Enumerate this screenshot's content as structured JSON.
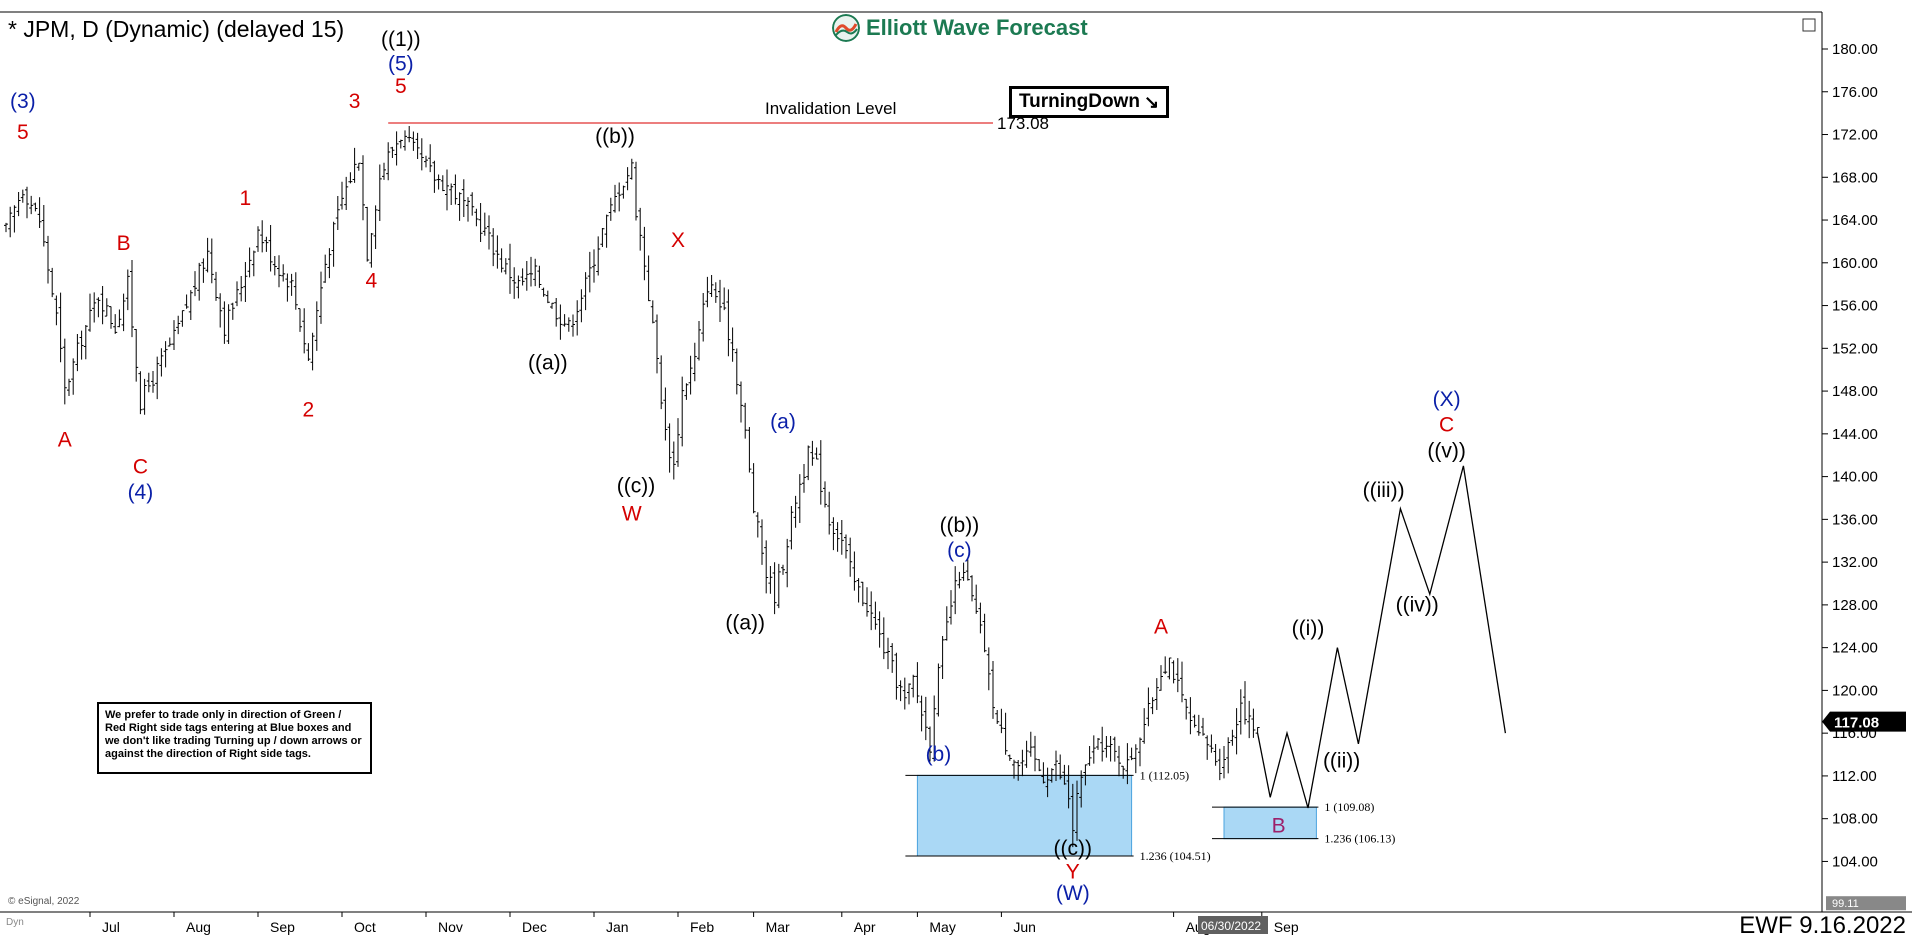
{
  "header": {
    "title": "* JPM, D (Dynamic) (delayed 15)",
    "brand": "Elliott Wave Forecast",
    "tag": "TurningDown"
  },
  "note": "We prefer to trade only in direction of Green / Red Right side tags entering at Blue boxes and we don't like trading Turning up / down arrows or against the direction of Right side tags.",
  "footer": {
    "copyright": "© eSignal, 2022",
    "ewf_date": "EWF 9.16.2022",
    "dyn": "Dyn",
    "date_highlight": "06/30/2022"
  },
  "colors": {
    "red": "#d40000",
    "blue": "#0a1fa8",
    "black": "#000000",
    "box": "#aad8f5",
    "box_border": "#4aa3df",
    "purple": "#9c1f6a",
    "brand": "#1c7a52"
  },
  "chart_data": {
    "type": "ohlc",
    "ylim": [
      100,
      182
    ],
    "y_ticks": [
      "180.00",
      "176.00",
      "172.00",
      "168.00",
      "164.00",
      "160.00",
      "156.00",
      "152.00",
      "148.00",
      "144.00",
      "140.00",
      "136.00",
      "132.00",
      "128.00",
      "124.00",
      "120.00",
      "116.00",
      "112.00",
      "108.00",
      "104.00"
    ],
    "x_months": [
      {
        "label": "Jul",
        "bar": 20
      },
      {
        "label": "Aug",
        "bar": 40
      },
      {
        "label": "Sep",
        "bar": 60
      },
      {
        "label": "Oct",
        "bar": 80
      },
      {
        "label": "Nov",
        "bar": 100
      },
      {
        "label": "Dec",
        "bar": 120
      },
      {
        "label": "Jan",
        "bar": 140
      },
      {
        "label": "Feb",
        "bar": 160
      },
      {
        "label": "Mar",
        "bar": 178
      },
      {
        "label": "Apr",
        "bar": 199
      },
      {
        "label": "May",
        "bar": 217
      },
      {
        "label": "Jun",
        "bar": 237
      },
      {
        "label": "Aug",
        "bar": 278
      },
      {
        "label": "Sep",
        "bar": 299
      }
    ],
    "price_anchors": [
      [
        0,
        163
      ],
      [
        4,
        167
      ],
      [
        8,
        164
      ],
      [
        12,
        155
      ],
      [
        14,
        148
      ],
      [
        18,
        153
      ],
      [
        22,
        157
      ],
      [
        26,
        154
      ],
      [
        29,
        158
      ],
      [
        32,
        147
      ],
      [
        36,
        150
      ],
      [
        40,
        153
      ],
      [
        44,
        157
      ],
      [
        48,
        161
      ],
      [
        52,
        154
      ],
      [
        56,
        158
      ],
      [
        60,
        163
      ],
      [
        64,
        160
      ],
      [
        68,
        158
      ],
      [
        72,
        151
      ],
      [
        76,
        160
      ],
      [
        80,
        166
      ],
      [
        84,
        170
      ],
      [
        86,
        161
      ],
      [
        89,
        168
      ],
      [
        91,
        170
      ],
      [
        94,
        172
      ],
      [
        98,
        170
      ],
      [
        102,
        168
      ],
      [
        106,
        167
      ],
      [
        110,
        165
      ],
      [
        114,
        163
      ],
      [
        118,
        160
      ],
      [
        122,
        158
      ],
      [
        126,
        159
      ],
      [
        130,
        156
      ],
      [
        134,
        154
      ],
      [
        138,
        158
      ],
      [
        142,
        163
      ],
      [
        146,
        167
      ],
      [
        149,
        169
      ],
      [
        150,
        165
      ],
      [
        152,
        160
      ],
      [
        155,
        151
      ],
      [
        157,
        144
      ],
      [
        159,
        141
      ],
      [
        161,
        148
      ],
      [
        164,
        151
      ],
      [
        167,
        158
      ],
      [
        169,
        157
      ],
      [
        171,
        155
      ],
      [
        173,
        152
      ],
      [
        176,
        144
      ],
      [
        178,
        137
      ],
      [
        181,
        131
      ],
      [
        183,
        129
      ],
      [
        185,
        132
      ],
      [
        188,
        138
      ],
      [
        191,
        142
      ],
      [
        193,
        141
      ],
      [
        196,
        136
      ],
      [
        199,
        134
      ],
      [
        202,
        130
      ],
      [
        205,
        128
      ],
      [
        208,
        125
      ],
      [
        211,
        122
      ],
      [
        214,
        119
      ],
      [
        216,
        121
      ],
      [
        218,
        118
      ],
      [
        220,
        115
      ],
      [
        221,
        119
      ],
      [
        223,
        124
      ],
      [
        225,
        128
      ],
      [
        227,
        131
      ],
      [
        229,
        130
      ],
      [
        231,
        127
      ],
      [
        233,
        124
      ],
      [
        234,
        121
      ],
      [
        236,
        117
      ],
      [
        238,
        115
      ],
      [
        241,
        113
      ],
      [
        244,
        114
      ],
      [
        247,
        112
      ],
      [
        250,
        113
      ],
      [
        253,
        110
      ],
      [
        254,
        107
      ],
      [
        255,
        110
      ],
      [
        258,
        114
      ],
      [
        261,
        115
      ],
      [
        264,
        114
      ],
      [
        267,
        113
      ],
      [
        269,
        115
      ],
      [
        272,
        118
      ],
      [
        275,
        122
      ],
      [
        277,
        123
      ],
      [
        280,
        119
      ],
      [
        283,
        116
      ],
      [
        286,
        115
      ],
      [
        289,
        113
      ],
      [
        292,
        116
      ],
      [
        294,
        119
      ],
      [
        296,
        117
      ],
      [
        298,
        116
      ]
    ],
    "projection": [
      [
        298,
        116
      ],
      [
        301,
        110
      ],
      [
        305,
        116
      ],
      [
        310,
        109
      ],
      [
        317,
        124
      ],
      [
        322,
        115
      ],
      [
        332,
        137
      ],
      [
        339,
        129
      ],
      [
        347,
        141
      ],
      [
        357,
        116
      ]
    ],
    "invalidation": {
      "label": "Invalidation Level",
      "value": 173.08,
      "value_label": "173.08",
      "from_bar": 91,
      "to_bar": 235
    },
    "last_price": {
      "value": 117.08,
      "label": "117.08"
    },
    "bottom_price": {
      "value": 100.0,
      "label": "99.11"
    },
    "boxes": [
      {
        "from_bar": 217,
        "to_bar": 268,
        "top": 112.05,
        "bottom": 104.51,
        "top_label": "1 (112.05)",
        "bottom_label": "1.236 (104.51)"
      },
      {
        "from_bar": 290,
        "to_bar": 312,
        "top": 109.08,
        "bottom": 106.13,
        "top_label": "1 (109.08)",
        "bottom_label": "1.236 (106.13)"
      }
    ],
    "wave_labels": [
      {
        "text": "(3)",
        "bar": 4,
        "price": 174.5,
        "color": "blue"
      },
      {
        "text": "5",
        "bar": 4,
        "price": 171.6,
        "color": "red"
      },
      {
        "text": "A",
        "bar": 14,
        "price": 142.8,
        "color": "red"
      },
      {
        "text": "B",
        "bar": 28,
        "price": 161.2,
        "color": "red"
      },
      {
        "text": "C",
        "bar": 32,
        "price": 140.3,
        "color": "red"
      },
      {
        "text": "(4)",
        "bar": 32,
        "price": 137.9,
        "color": "blue"
      },
      {
        "text": "1",
        "bar": 57,
        "price": 165.4,
        "color": "red"
      },
      {
        "text": "2",
        "bar": 72,
        "price": 145.6,
        "color": "red"
      },
      {
        "text": "3",
        "bar": 83,
        "price": 174.5,
        "color": "red"
      },
      {
        "text": "4",
        "bar": 87,
        "price": 157.7,
        "color": "red"
      },
      {
        "text": "((1))",
        "bar": 94,
        "price": 180.3,
        "color": "black"
      },
      {
        "text": "(5)",
        "bar": 94,
        "price": 178.0,
        "color": "blue"
      },
      {
        "text": "5",
        "bar": 94,
        "price": 175.9,
        "color": "red"
      },
      {
        "text": "((a))",
        "bar": 129,
        "price": 150.0,
        "color": "black"
      },
      {
        "text": "((b))",
        "bar": 145,
        "price": 171.2,
        "color": "black"
      },
      {
        "text": "((c))",
        "bar": 150,
        "price": 138.5,
        "color": "black"
      },
      {
        "text": "W",
        "bar": 149,
        "price": 135.9,
        "color": "red"
      },
      {
        "text": "X",
        "bar": 160,
        "price": 161.5,
        "color": "red"
      },
      {
        "text": "((a))",
        "bar": 176,
        "price": 125.7,
        "color": "black"
      },
      {
        "text": "(a)",
        "bar": 185,
        "price": 144.5,
        "color": "blue"
      },
      {
        "text": "((b))",
        "bar": 227,
        "price": 134.8,
        "color": "black"
      },
      {
        "text": "(c)",
        "bar": 227,
        "price": 132.5,
        "color": "blue"
      },
      {
        "text": "(b)",
        "bar": 222,
        "price": 113.4,
        "color": "blue"
      },
      {
        "text": "((c))",
        "bar": 254,
        "price": 104.6,
        "color": "black"
      },
      {
        "text": "Y",
        "bar": 254,
        "price": 102.4,
        "color": "red"
      },
      {
        "text": "(W)",
        "bar": 254,
        "price": 100.4,
        "color": "blue"
      },
      {
        "text": "A",
        "bar": 275,
        "price": 125.3,
        "color": "red"
      },
      {
        "text": "B",
        "bar": 303,
        "price": 106.7,
        "color": "purple"
      },
      {
        "text": "((i))",
        "bar": 310,
        "price": 125.2,
        "color": "black"
      },
      {
        "text": "((ii))",
        "bar": 318,
        "price": 112.8,
        "color": "black"
      },
      {
        "text": "((iii))",
        "bar": 328,
        "price": 138.1,
        "color": "black"
      },
      {
        "text": "((iv))",
        "bar": 336,
        "price": 127.4,
        "color": "black"
      },
      {
        "text": "((v))",
        "bar": 343,
        "price": 141.8,
        "color": "black"
      },
      {
        "text": "C",
        "bar": 343,
        "price": 144.2,
        "color": "red"
      },
      {
        "text": "(X)",
        "bar": 343,
        "price": 146.6,
        "color": "blue"
      }
    ]
  }
}
